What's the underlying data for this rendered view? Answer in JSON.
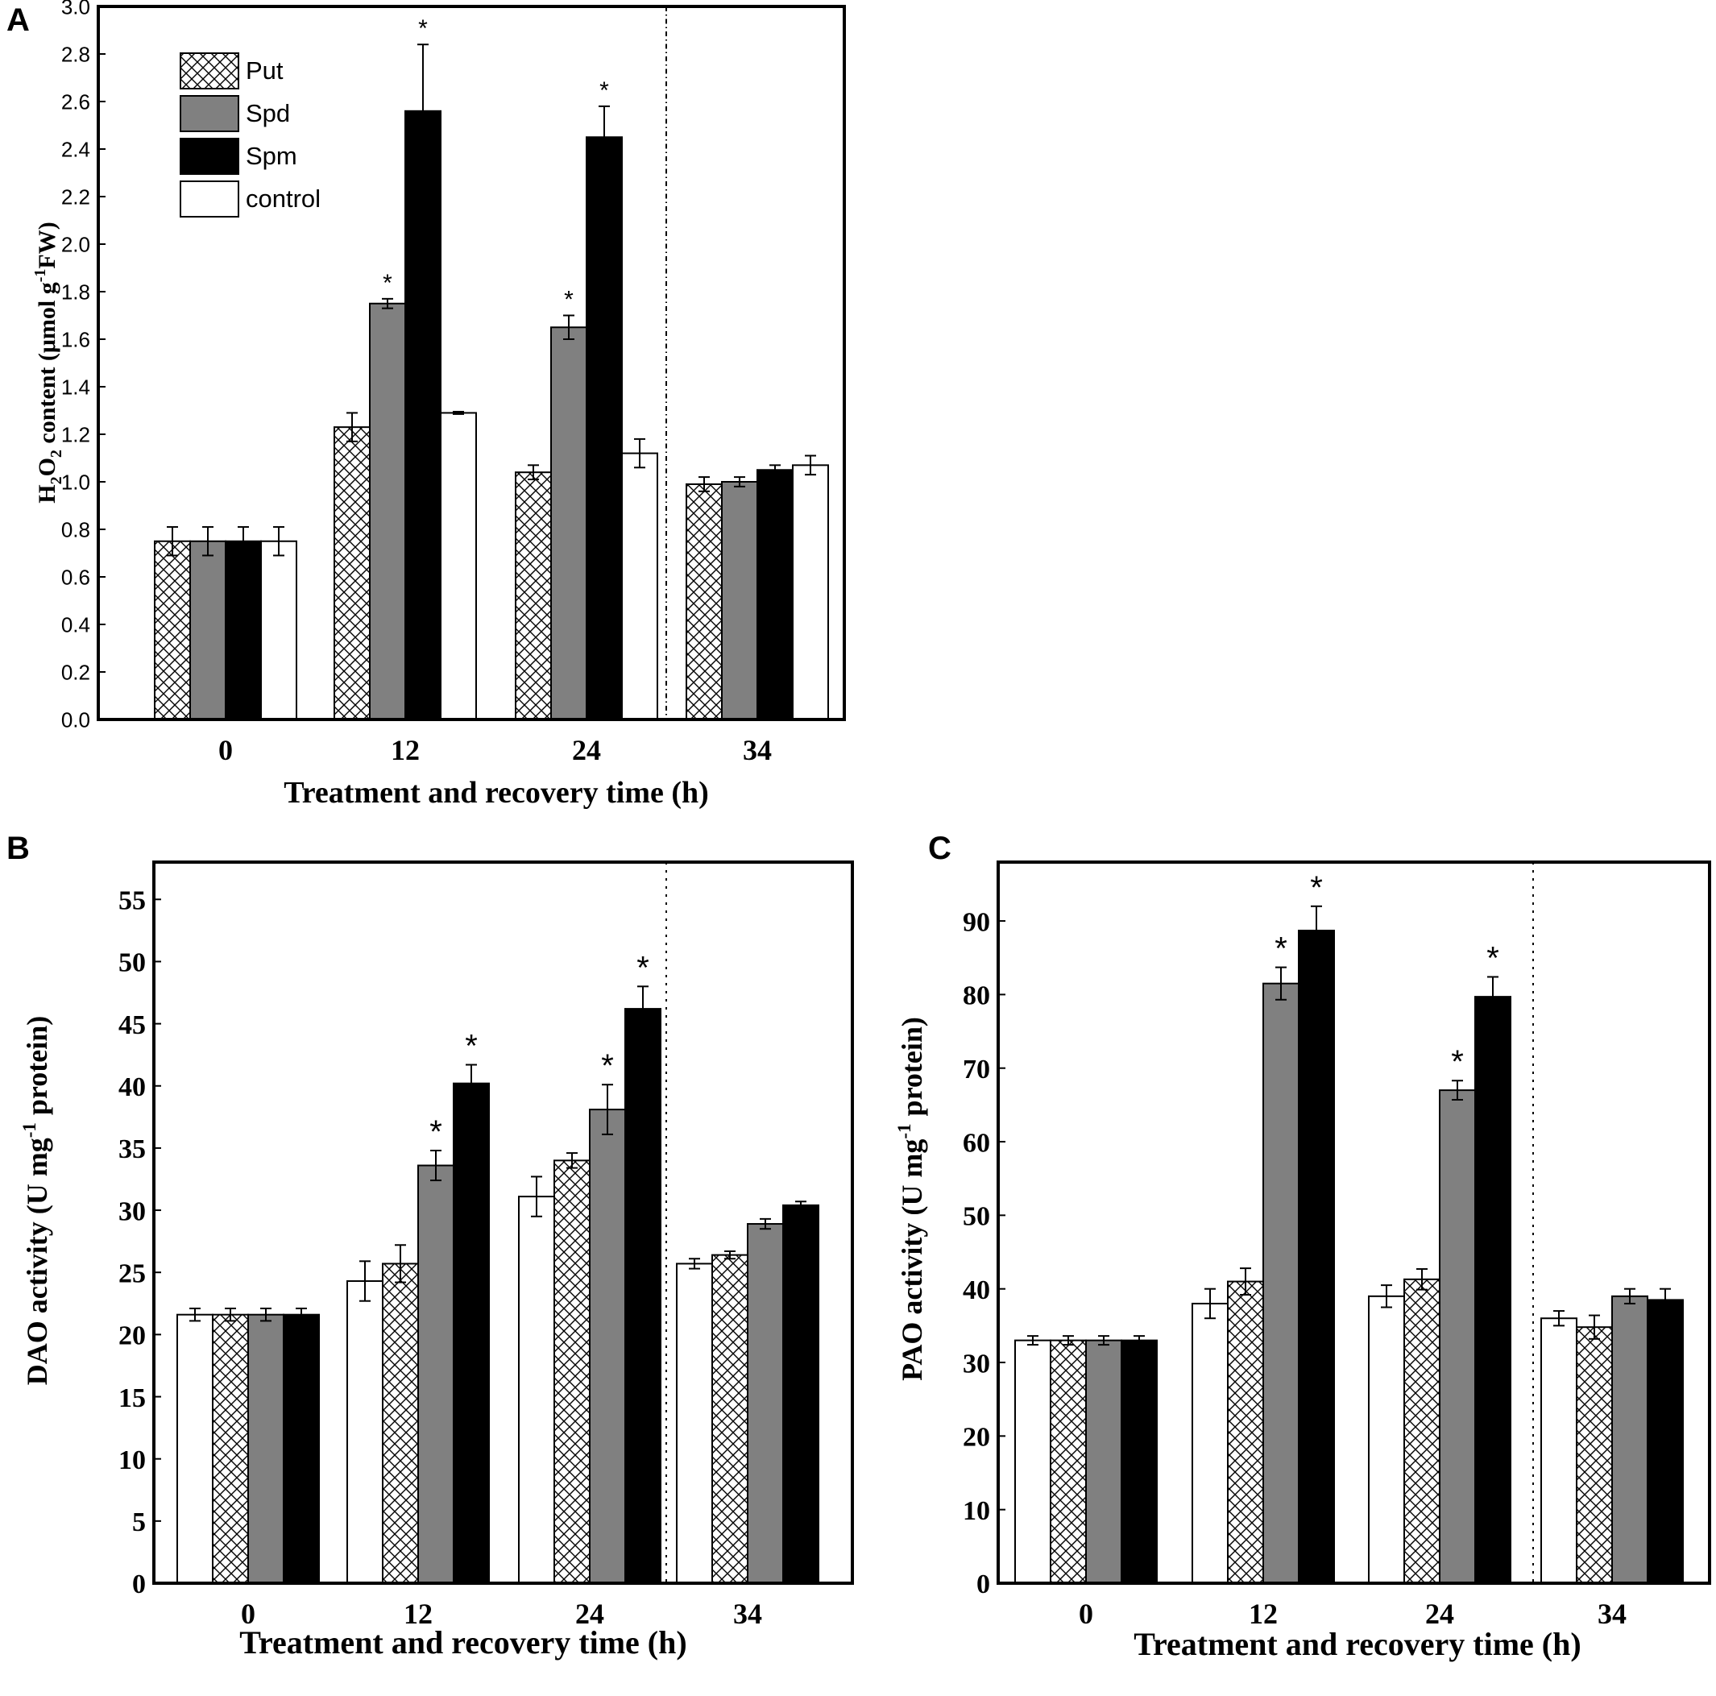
{
  "figure": {
    "colors": {
      "Put": "#ffffff",
      "Spd": "#808080",
      "Spm": "#000000",
      "control": "#ffffff",
      "axis": "#000000"
    }
  },
  "chart_data": [
    {
      "panel": "A",
      "type": "bar",
      "xlabel": "Treatment and recovery time (h)",
      "ylabel": "H2O2 content (μmol g-1FW)",
      "ylabel_parts": [
        "H",
        "2",
        "O",
        "2",
        " content (μmol g",
        "-1",
        "FW)"
      ],
      "categories": [
        "0",
        "12",
        "24",
        "34"
      ],
      "ylim": [
        0,
        3.0
      ],
      "yticks": [
        "0.0",
        "0.2",
        "0.4",
        "0.6",
        "0.8",
        "1.0",
        "1.2",
        "1.4",
        "1.6",
        "1.8",
        "2.0",
        "2.2",
        "2.4",
        "2.6",
        "2.8",
        "3.0"
      ],
      "legend": [
        "Put",
        "Spd",
        "Spm",
        "control"
      ],
      "legend_position": "top-left",
      "separator": "between 24 and 34",
      "series": [
        {
          "name": "Put",
          "fill": "hatch",
          "values": [
            0.75,
            1.23,
            1.04,
            0.99
          ],
          "errors": [
            0.06,
            0.06,
            0.03,
            0.03
          ],
          "stars": [
            false,
            false,
            false,
            false
          ]
        },
        {
          "name": "Spd",
          "fill": "gray",
          "values": [
            0.75,
            1.75,
            1.65,
            1.0
          ],
          "errors": [
            0.06,
            0.02,
            0.05,
            0.02
          ],
          "stars": [
            false,
            true,
            true,
            false
          ]
        },
        {
          "name": "Spm",
          "fill": "black",
          "values": [
            0.75,
            2.56,
            2.45,
            1.05
          ],
          "errors": [
            0.06,
            0.28,
            0.13,
            0.02
          ],
          "stars": [
            false,
            true,
            true,
            false
          ]
        },
        {
          "name": "control",
          "fill": "white",
          "values": [
            0.75,
            1.29,
            1.12,
            1.07
          ],
          "errors": [
            0.06,
            0.005,
            0.06,
            0.04
          ],
          "stars": [
            false,
            false,
            false,
            false
          ]
        }
      ]
    },
    {
      "panel": "B",
      "type": "bar",
      "xlabel": "Treatment and recovery time (h)",
      "ylabel": "DAO activity (U mg-1 protein)",
      "ylabel_parts": [
        "DAO activity (U mg",
        "-1",
        " protein)"
      ],
      "categories": [
        "0",
        "12",
        "24",
        "34"
      ],
      "ylim": [
        0,
        58
      ],
      "yticks": [
        "0",
        "5",
        "10",
        "15",
        "20",
        "25",
        "30",
        "35",
        "40",
        "45",
        "50",
        "55"
      ],
      "separator": "between 24 and 34",
      "series": [
        {
          "name": "control",
          "fill": "white",
          "values": [
            21.6,
            24.3,
            31.1,
            25.7
          ],
          "errors": [
            0.5,
            1.6,
            1.6,
            0.4
          ],
          "stars": [
            false,
            false,
            false,
            false
          ]
        },
        {
          "name": "Put",
          "fill": "hatch",
          "values": [
            21.6,
            25.7,
            34.0,
            26.4
          ],
          "errors": [
            0.5,
            1.5,
            0.6,
            0.3
          ],
          "stars": [
            false,
            false,
            false,
            false
          ]
        },
        {
          "name": "Spd",
          "fill": "gray",
          "values": [
            21.6,
            33.6,
            38.1,
            28.9
          ],
          "errors": [
            0.5,
            1.2,
            2.0,
            0.4
          ],
          "stars": [
            false,
            true,
            true,
            false
          ]
        },
        {
          "name": "Spm",
          "fill": "black",
          "values": [
            21.6,
            40.2,
            46.2,
            30.4
          ],
          "errors": [
            0.5,
            1.5,
            1.8,
            0.3
          ],
          "stars": [
            false,
            true,
            true,
            false
          ]
        }
      ]
    },
    {
      "panel": "C",
      "type": "bar",
      "xlabel": "Treatment and recovery time (h)",
      "ylabel": "PAO activity (U mg-1 protein)",
      "ylabel_parts": [
        "PAO activity (U mg",
        "-1",
        " protein)"
      ],
      "categories": [
        "0",
        "12",
        "24",
        "34"
      ],
      "ylim": [
        0,
        98
      ],
      "yticks": [
        "0",
        "10",
        "20",
        "30",
        "40",
        "50",
        "60",
        "70",
        "80",
        "90"
      ],
      "separator": "between 24 and 34",
      "series": [
        {
          "name": "control",
          "fill": "white",
          "values": [
            33.0,
            38.0,
            39.0,
            36.0
          ],
          "errors": [
            0.6,
            2.0,
            1.5,
            1.0
          ],
          "stars": [
            false,
            false,
            false,
            false
          ]
        },
        {
          "name": "Put",
          "fill": "hatch",
          "values": [
            33.0,
            41.0,
            41.3,
            34.8
          ],
          "errors": [
            0.6,
            1.8,
            1.4,
            1.6
          ],
          "stars": [
            false,
            false,
            false,
            false
          ]
        },
        {
          "name": "Spd",
          "fill": "gray",
          "values": [
            33.0,
            81.5,
            67.0,
            39.0
          ],
          "errors": [
            0.6,
            2.2,
            1.3,
            1.0
          ],
          "stars": [
            false,
            true,
            true,
            false
          ]
        },
        {
          "name": "Spm",
          "fill": "black",
          "values": [
            33.0,
            88.7,
            79.7,
            38.5
          ],
          "errors": [
            0.6,
            3.3,
            2.7,
            1.5
          ],
          "stars": [
            false,
            true,
            true,
            false
          ]
        }
      ]
    }
  ]
}
